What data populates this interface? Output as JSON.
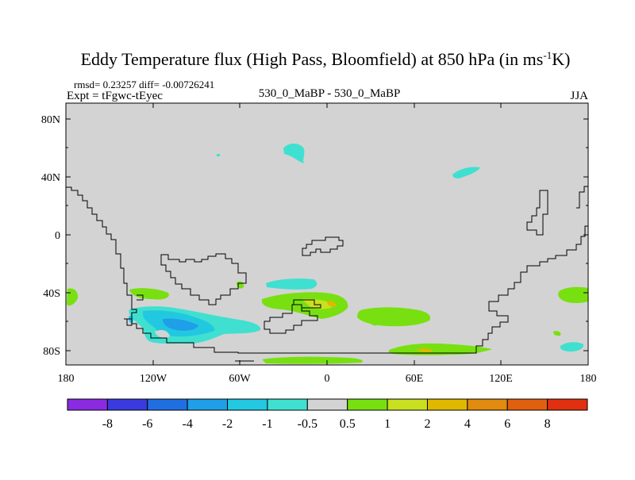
{
  "title": {
    "main": "Eddy Temperature flux (High Pass, Bloomfield) at 850 hPa (in ms",
    "sup": "-1",
    "tail": "K)"
  },
  "header": {
    "stats": "rmsd= 0.23257  diff= -0.00726241",
    "expt": "Expt = tFgwc-tEyec",
    "center": "530_0_MaBP - 530_0_MaBP",
    "season": "JJA"
  },
  "axes": {
    "x_ticks": [
      "180",
      "120W",
      "60W",
      "0",
      "60E",
      "120E",
      "180"
    ],
    "y_ticks": [
      "80N",
      "40N",
      "0",
      "40S",
      "80S"
    ]
  },
  "colors": {
    "background_field": "#d3d3d3",
    "coast": "#000000"
  },
  "colorbar": {
    "labels": [
      "-8",
      "-6",
      "-4",
      "-2",
      "-1",
      "-0.5",
      "0.5",
      "1",
      "2",
      "4",
      "6",
      "8"
    ],
    "colors": [
      "#8a2be2",
      "#3a3adf",
      "#1f6fe0",
      "#1e9fe8",
      "#22c8e0",
      "#40e0d0",
      "#d3d3d3",
      "#78e010",
      "#c8e020",
      "#e0b800",
      "#e08a10",
      "#e06010",
      "#e03010"
    ]
  }
}
